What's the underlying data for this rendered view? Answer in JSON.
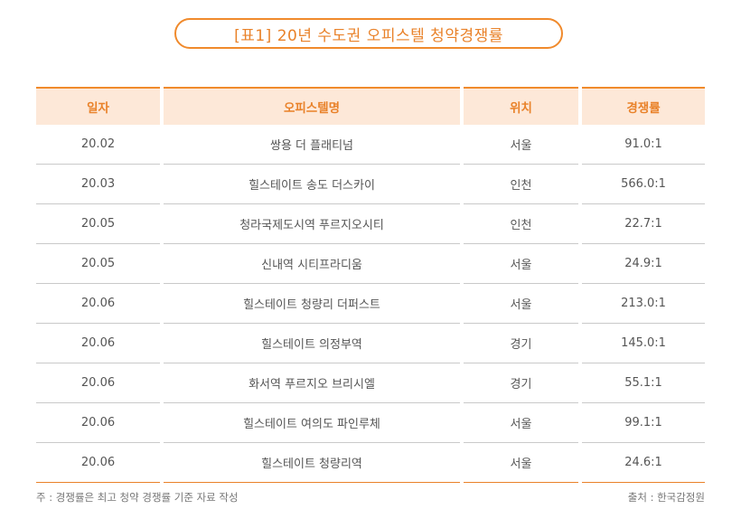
{
  "title": "[표1] 20년 수도권 오피스텔 청약경쟁률",
  "table": {
    "headers": [
      "일자",
      "오피스텔명",
      "위치",
      "경쟁률"
    ],
    "rows": [
      [
        "20.02",
        "쌍용 더 플래티넘",
        "서울",
        "91.0:1"
      ],
      [
        "20.03",
        "힐스테이트 송도 더스카이",
        "인천",
        "566.0:1"
      ],
      [
        "20.05",
        "청라국제도시역 푸르지오시티",
        "인천",
        "22.7:1"
      ],
      [
        "20.05",
        "신내역 시티프라디움",
        "서울",
        "24.9:1"
      ],
      [
        "20.06",
        "힐스테이트 청량리 더퍼스트",
        "서울",
        "213.0:1"
      ],
      [
        "20.06",
        "힐스테이트 의정부역",
        "경기",
        "145.0:1"
      ],
      [
        "20.06",
        "화서역 푸르지오 브리시엘",
        "경기",
        "55.1:1"
      ],
      [
        "20.06",
        "힐스테이트 여의도 파인루체",
        "서울",
        "99.1:1"
      ],
      [
        "20.06",
        "힐스테이트 청량리역",
        "서울",
        "24.6:1"
      ]
    ]
  },
  "footer": {
    "note": "주 : 경쟁률은 최고 청약 경쟁률 기준 자료 작성",
    "source": "출처 : 한국감정원"
  },
  "colors": {
    "accent": "#f08a2c",
    "header_bg": "#fde8d8",
    "text": "#555555"
  }
}
